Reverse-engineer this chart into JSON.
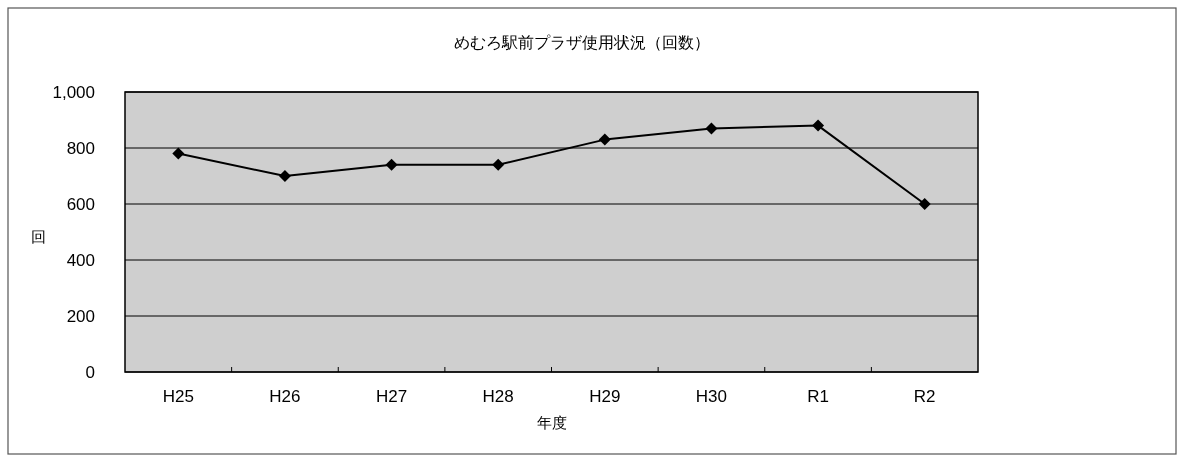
{
  "chart_data": {
    "type": "line",
    "title": "めむろ駅前プラザ使用状況（回数）",
    "xlabel": "年度",
    "ylabel": "回",
    "categories": [
      "H25",
      "H26",
      "H27",
      "H28",
      "H29",
      "H30",
      "R1",
      "R2"
    ],
    "series": [
      {
        "color": "#000000",
        "values": [
          780,
          700,
          740,
          740,
          830,
          870,
          880,
          600
        ]
      }
    ],
    "ylim": [
      0,
      1000
    ],
    "yticks": [
      0,
      200,
      400,
      600,
      800,
      {
        "value": 1000,
        "label": "1,000"
      }
    ],
    "grid": "y",
    "marker": "diamond",
    "line_style": "solid"
  }
}
